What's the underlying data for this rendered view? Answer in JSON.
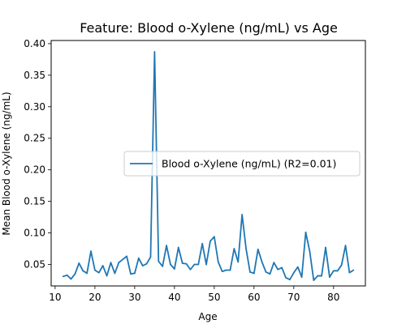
{
  "chart_data": {
    "type": "line",
    "title": "Feature: Blood o-Xylene (ng/mL) vs Age",
    "xlabel": "Age",
    "ylabel": "Mean Blood o-Xylene (ng/mL)",
    "xlim": [
      9,
      88
    ],
    "ylim": [
      0.016,
      0.405
    ],
    "xticks": [
      10,
      20,
      30,
      40,
      50,
      60,
      70,
      80
    ],
    "yticks": [
      0.05,
      0.1,
      0.15,
      0.2,
      0.25,
      0.3,
      0.35,
      0.4
    ],
    "ytick_labels": [
      "0.05",
      "0.10",
      "0.15",
      "0.20",
      "0.25",
      "0.30",
      "0.35",
      "0.40"
    ],
    "grid": false,
    "legend_position": "center-right",
    "series": [
      {
        "name": "Blood o-Xylene (ng/mL) (R2=0.01)",
        "color": "#1f77b4",
        "x": [
          12,
          13,
          14,
          15,
          16,
          17,
          18,
          19,
          20,
          21,
          22,
          23,
          24,
          25,
          26,
          27,
          28,
          29,
          30,
          31,
          32,
          33,
          34,
          35,
          36,
          37,
          38,
          39,
          40,
          41,
          42,
          43,
          44,
          45,
          46,
          47,
          48,
          49,
          50,
          51,
          52,
          53,
          54,
          55,
          56,
          57,
          58,
          59,
          60,
          61,
          62,
          63,
          64,
          65,
          66,
          67,
          68,
          69,
          70,
          71,
          72,
          73,
          74,
          75,
          76,
          77,
          78,
          79,
          80,
          81,
          82,
          83,
          84,
          85
        ],
        "y": [
          0.031,
          0.033,
          0.027,
          0.035,
          0.052,
          0.04,
          0.036,
          0.071,
          0.041,
          0.037,
          0.048,
          0.032,
          0.053,
          0.036,
          0.053,
          0.058,
          0.063,
          0.035,
          0.036,
          0.06,
          0.048,
          0.051,
          0.062,
          0.387,
          0.055,
          0.047,
          0.08,
          0.05,
          0.043,
          0.077,
          0.052,
          0.051,
          0.042,
          0.05,
          0.05,
          0.083,
          0.05,
          0.087,
          0.094,
          0.054,
          0.039,
          0.041,
          0.041,
          0.075,
          0.054,
          0.129,
          0.075,
          0.038,
          0.036,
          0.074,
          0.054,
          0.038,
          0.035,
          0.053,
          0.042,
          0.045,
          0.029,
          0.026,
          0.037,
          0.046,
          0.03,
          0.101,
          0.071,
          0.025,
          0.032,
          0.032,
          0.077,
          0.03,
          0.04,
          0.04,
          0.049,
          0.08,
          0.037,
          0.041
        ]
      }
    ]
  }
}
